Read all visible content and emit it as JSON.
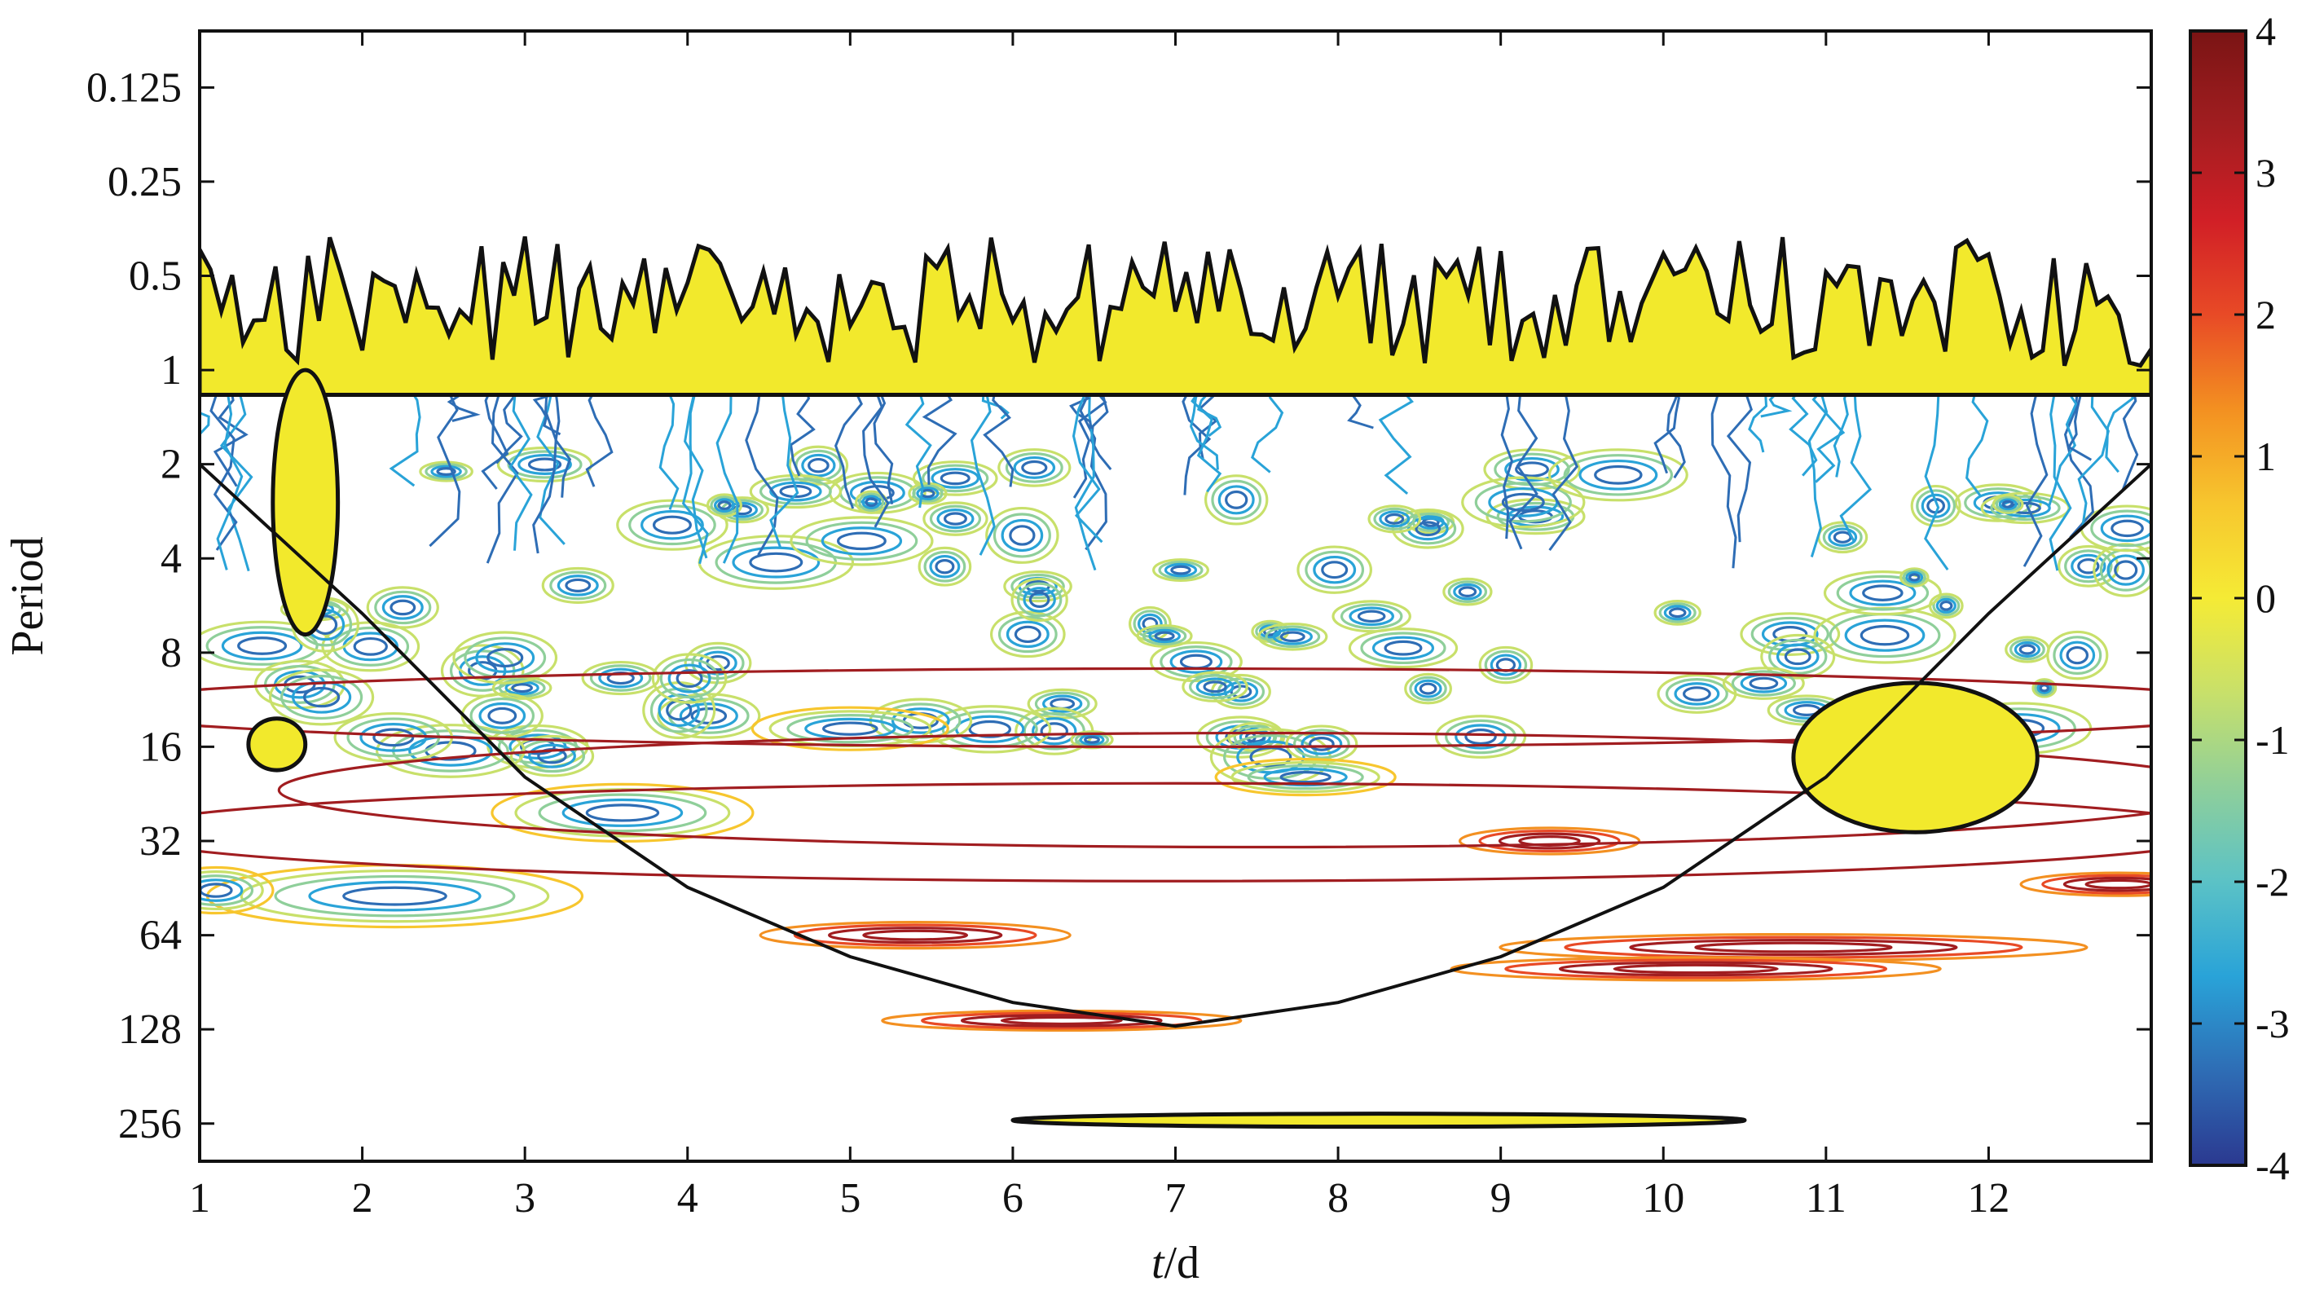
{
  "chart_data": {
    "type": "heatmap",
    "subtype": "wavelet-coherence-contour",
    "title": "",
    "xlabel_italic": "t",
    "xlabel_rest": "/d",
    "ylabel": "Period",
    "xlim": [
      1,
      13
    ],
    "x_ticks": [
      1,
      2,
      3,
      4,
      5,
      6,
      7,
      8,
      9,
      10,
      11,
      12
    ],
    "x_tick_labels": [
      "1",
      "2",
      "3",
      "4",
      "5",
      "6",
      "7",
      "8",
      "9",
      "10",
      "11",
      "12"
    ],
    "ylim_log2": [
      -3.6,
      8.4
    ],
    "y_ticks": [
      0.125,
      0.25,
      0.5,
      1,
      2,
      4,
      8,
      16,
      32,
      64,
      128,
      256
    ],
    "y_tick_labels": [
      "0.125",
      "0.25",
      "0.5",
      "1",
      "2",
      "4",
      "8",
      "16",
      "32",
      "64",
      "128",
      "256"
    ],
    "y_reversed": true,
    "colorbar": {
      "range": [
        -4,
        4
      ],
      "ticks": [
        4,
        3,
        2,
        1,
        0,
        -1,
        -2,
        -3,
        -4
      ],
      "tick_labels": [
        "4",
        "3",
        "2",
        "1",
        "0",
        "-1",
        "-2",
        "-3",
        "-4"
      ],
      "colors_low_to_high": [
        "#2b3990",
        "#2e6db5",
        "#29a3d8",
        "#5bc2c6",
        "#8fcf9a",
        "#c8e06a",
        "#f5eb35",
        "#f7c62e",
        "#f39021",
        "#e84a26",
        "#d11f26",
        "#a11d20",
        "#7a1414"
      ]
    },
    "cone_of_influence": {
      "x": [
        1,
        2,
        3,
        4,
        5,
        6,
        7,
        8,
        9,
        10,
        11,
        12,
        13
      ],
      "period": [
        2,
        6,
        20,
        45,
        75,
        105,
        125,
        105,
        75,
        45,
        20,
        6,
        2
      ]
    },
    "significant_regions": [
      {
        "name": "high-frequency-band",
        "x_range": [
          1,
          13
        ],
        "period_range": [
          0.3,
          1.2
        ]
      },
      {
        "name": "blob-near-1.6",
        "x_range": [
          1.45,
          1.85
        ],
        "period_range": [
          1,
          7
        ]
      },
      {
        "name": "blob-near-1.4",
        "x_range": [
          1.3,
          1.65
        ],
        "period_range": [
          13,
          19
        ]
      },
      {
        "name": "blob-near-11.4",
        "x_range": [
          10.8,
          12.3
        ],
        "period_range": [
          10,
          30
        ]
      },
      {
        "name": "long-period-band",
        "x_range": [
          6,
          10.5
        ],
        "period_range": [
          240,
          260
        ]
      }
    ]
  }
}
